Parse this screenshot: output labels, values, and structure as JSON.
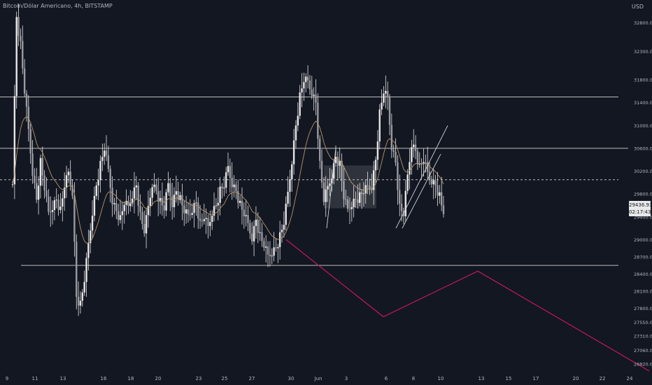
{
  "header": {
    "title": "Bitcoin/Dólar Americano, 4h, BITSTAMP",
    "currency": "USD"
  },
  "price_badge": {
    "price": "29436.93",
    "countdown": "02:17:43"
  },
  "colors": {
    "background": "#131722",
    "candle": "#e6e6e6",
    "ma_line": "#b4966a",
    "projection": "#c2185b",
    "level_line": "#bdbdbd"
  },
  "chart_data": {
    "type": "candlestick",
    "title": "Bitcoin/Dólar Americano, 4h, BITSTAMP",
    "x_ticks": [
      "9",
      "11",
      "13",
      "16",
      "18",
      "20",
      "23",
      "25",
      "27",
      "30",
      "Jun",
      "3",
      "6",
      "8",
      "10",
      "13",
      "15",
      "17",
      "20",
      "22",
      "24"
    ],
    "y_ticks": [
      32800,
      32300,
      31800,
      31400,
      31000,
      30600,
      30200,
      29800,
      29400,
      29000,
      28700,
      28400,
      28100,
      27800,
      27550,
      27310,
      27060,
      26820
    ],
    "y_range": [
      26700,
      33100
    ],
    "grid": false,
    "levels": [
      {
        "price": 31500,
        "style": "solid"
      },
      {
        "price": 30600,
        "style": "solid"
      },
      {
        "price": 30050,
        "style": "dashed"
      },
      {
        "price": 28550,
        "style": "solid"
      }
    ],
    "projection_path": [
      {
        "date": "May 28",
        "price": 29000
      },
      {
        "date": "Jun 6",
        "price": 27650
      },
      {
        "date": "Jun 13",
        "price": 28450
      },
      {
        "date": "Jun 24",
        "price": 26700
      }
    ],
    "close_segments": [
      [
        30050,
        32900,
        32400,
        31600,
        30900,
        30200,
        29700,
        30350,
        29900,
        29450,
        29600,
        29700,
        29500,
        29950,
        30150,
        29850
      ],
      [
        29900,
        28000,
        27850,
        28300,
        28900,
        29500,
        29950,
        30300,
        30600,
        30200,
        29700,
        29500,
        29350,
        29650,
        29550,
        29800
      ],
      [
        29750,
        29950,
        29400,
        29150,
        29550,
        30000,
        29850,
        29650,
        29550,
        29950,
        29650,
        29850,
        29700,
        29500,
        29400,
        29550
      ],
      [
        29550,
        29650,
        29250,
        29400,
        29200,
        29500,
        29600,
        29850,
        29950,
        30250,
        30000,
        29850,
        29600,
        29450,
        29250,
        29050
      ],
      [
        29150,
        29350,
        29050,
        28900,
        28700,
        28800,
        28850,
        29050,
        29300,
        29800,
        30400,
        31000,
        31500,
        31800,
        31750,
        31600
      ],
      [
        31650,
        31400,
        30300,
        29700,
        29900,
        30150,
        30450,
        30300,
        29750,
        29500,
        29650,
        29700,
        29750,
        29850,
        29900,
        29950
      ],
      [
        30050,
        30400,
        31200,
        31600,
        31450,
        30650,
        30350,
        29550,
        29450,
        30100,
        30700,
        30550,
        30250,
        30400,
        30150,
        30050,
        29950,
        29750,
        29450
      ]
    ]
  }
}
